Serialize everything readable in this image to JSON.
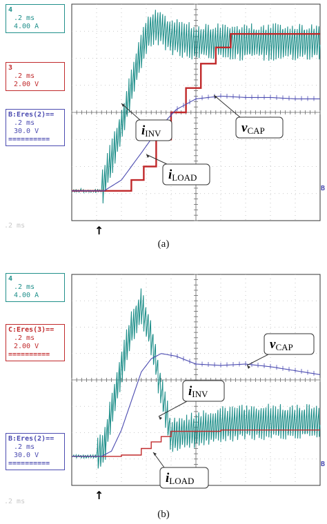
{
  "panels": [
    {
      "id": "a",
      "caption": "(a)",
      "info_boxes": [
        {
          "header": "4",
          "lines": [
            ".2 ms",
            "4.00 A"
          ],
          "color": "#1f8f8a"
        },
        {
          "header": "3",
          "lines": [
            ".2 ms",
            "2.00 V"
          ],
          "color": "#c0282a"
        },
        {
          "header": "B:Eres(2)==",
          "lines": [
            ".2 ms",
            "30.0 V"
          ],
          "footer": "==========",
          "color": "#4a4ab0"
        }
      ],
      "timebase": ".2 ms",
      "trigger_marker": "↑",
      "right_marker": "B",
      "labels": {
        "inv": {
          "main": "i",
          "sub": "INV"
        },
        "load": {
          "main": "i",
          "sub": "LOAD"
        },
        "cap": {
          "main": "v",
          "sub": "CAP"
        }
      }
    },
    {
      "id": "b",
      "caption": "(b)",
      "info_boxes": [
        {
          "header": "4",
          "lines": [
            ".2 ms",
            "4.00 A"
          ],
          "color": "#1f8f8a"
        },
        {
          "header": "C:Eres(3)==",
          "lines": [
            ".2 ms",
            "2.00 V"
          ],
          "footer": "==========",
          "color": "#c0282a"
        },
        {
          "header": "B:Eres(2)==",
          "lines": [
            ".2 ms",
            "30.0 V"
          ],
          "footer": "==========",
          "color": "#4a4ab0"
        }
      ],
      "timebase": ".2 ms",
      "trigger_marker": "↑",
      "right_marker": "B",
      "labels": {
        "inv": {
          "main": "i",
          "sub": "INV"
        },
        "load": {
          "main": "i",
          "sub": "LOAD"
        },
        "cap": {
          "main": "v",
          "sub": "CAP"
        }
      }
    }
  ],
  "colors": {
    "inv": "#1f8f8a",
    "load": "#c0282a",
    "cap": "#4a4ab0",
    "grid": "#b8b8b8"
  },
  "chart_data": [
    {
      "type": "line",
      "panel": "a",
      "grid": true,
      "xlim": [
        0,
        10
      ],
      "ylim": [
        -4,
        4
      ],
      "series": [
        {
          "key": "inv",
          "x": [
            0,
            1.2,
            1.5,
            2.0,
            2.4,
            2.7,
            3.0,
            3.3,
            3.6,
            4.0,
            5.0,
            6.0,
            7.0,
            8.0,
            9.0,
            10.0
          ],
          "y": [
            -2.9,
            -2.9,
            -2.0,
            -0.5,
            0.9,
            2.0,
            2.8,
            3.2,
            3.1,
            2.8,
            2.6,
            2.6,
            2.6,
            2.6,
            2.6,
            2.6
          ]
        },
        {
          "key": "load",
          "x": [
            0,
            1.3,
            2.4,
            2.9,
            3.4,
            4.0,
            4.6,
            5.2,
            5.8,
            6.4,
            10.0
          ],
          "y": [
            -2.9,
            -2.9,
            -2.5,
            -2.0,
            -1.0,
            0.0,
            0.9,
            1.8,
            2.4,
            2.9,
            2.9
          ]
        },
        {
          "key": "cap",
          "x": [
            0,
            1.3,
            2.0,
            2.8,
            3.5,
            4.2,
            5.0,
            6.0,
            7.0,
            8.0,
            9.0,
            10.0
          ],
          "y": [
            -2.9,
            -2.9,
            -2.5,
            -1.5,
            -0.6,
            0.1,
            0.5,
            0.6,
            0.55,
            0.55,
            0.5,
            0.5
          ]
        }
      ]
    },
    {
      "type": "line",
      "panel": "b",
      "grid": true,
      "xlim": [
        0,
        10
      ],
      "ylim": [
        -4,
        4
      ],
      "series": [
        {
          "key": "inv",
          "x": [
            0,
            1.0,
            1.3,
            1.6,
            2.0,
            2.4,
            2.8,
            3.2,
            3.6,
            4.0,
            5.0,
            6.0,
            7.0,
            8.0,
            9.0,
            10.0
          ],
          "y": [
            -2.9,
            -2.9,
            -2.6,
            -1.2,
            0.5,
            1.9,
            2.8,
            1.6,
            -0.4,
            -2.1,
            -1.9,
            -1.7,
            -1.6,
            -1.6,
            -1.6,
            -1.6
          ]
        },
        {
          "key": "load",
          "x": [
            0,
            1.2,
            2.0,
            2.8,
            3.2,
            3.6,
            4.0,
            6.0,
            8.0,
            10.0
          ],
          "y": [
            -2.9,
            -2.9,
            -2.85,
            -2.6,
            -2.35,
            -2.15,
            -1.95,
            -1.9,
            -1.9,
            -1.9
          ]
        },
        {
          "key": "cap",
          "x": [
            0,
            1.2,
            1.6,
            2.0,
            2.4,
            2.8,
            3.2,
            3.6,
            4.2,
            5.0,
            6.0,
            7.0,
            8.0,
            9.0,
            10.0
          ],
          "y": [
            -2.9,
            -2.9,
            -2.7,
            -1.9,
            -0.8,
            0.3,
            0.8,
            1.0,
            0.9,
            0.6,
            0.55,
            0.6,
            0.5,
            0.35,
            0.2
          ]
        }
      ]
    }
  ]
}
